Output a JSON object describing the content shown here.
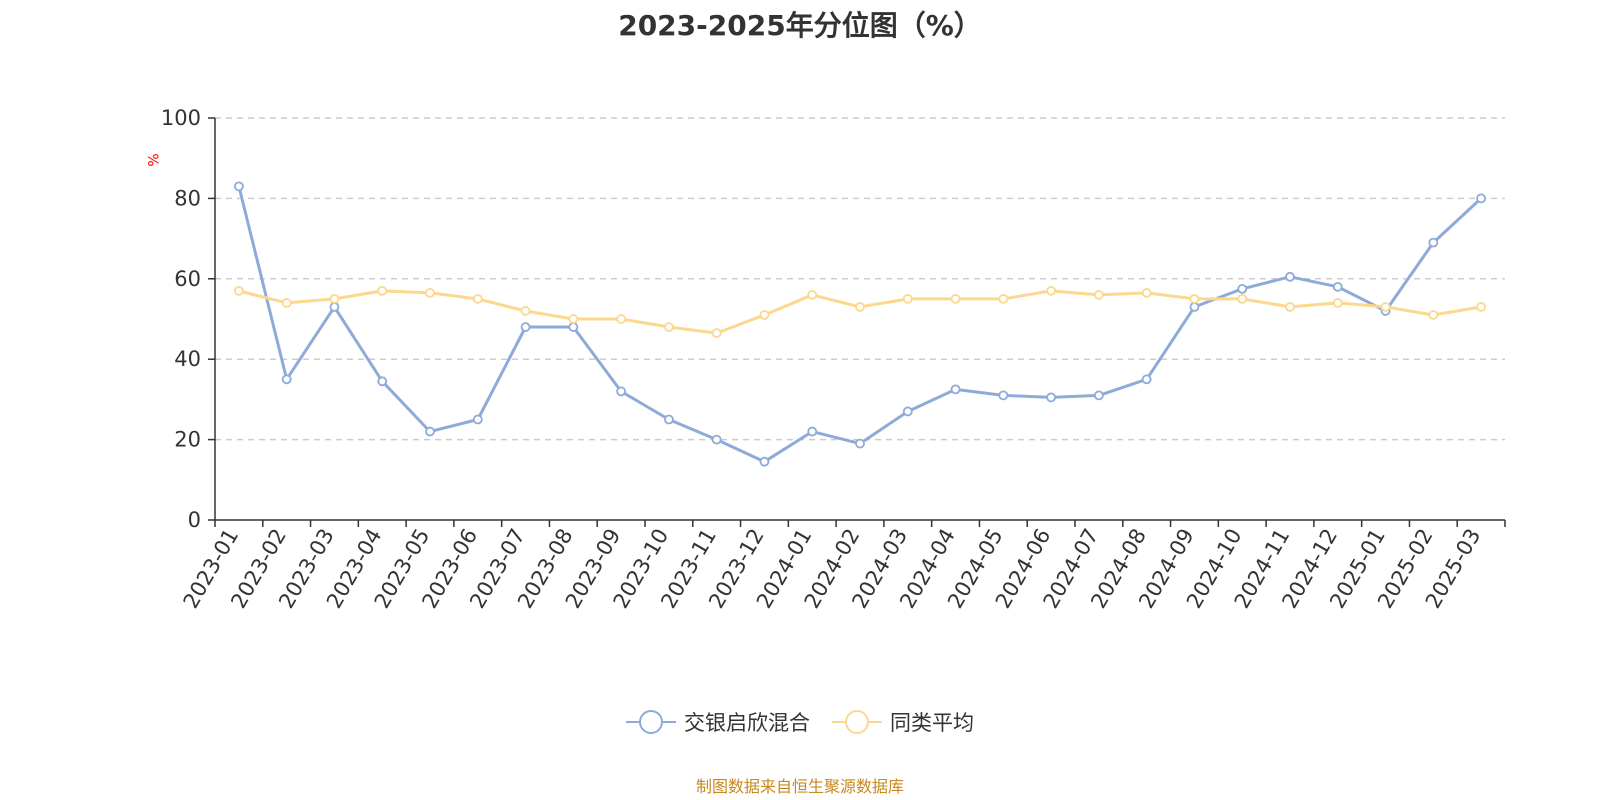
{
  "chart_data": {
    "type": "line",
    "title": "2023-2025年分位图（%）",
    "ylabel": "%",
    "xlabel": "",
    "ylim": [
      0,
      100
    ],
    "yticks": [
      0,
      20,
      40,
      60,
      80,
      100
    ],
    "grid": true,
    "legend_position": "bottom",
    "categories": [
      "2023-01",
      "2023-02",
      "2023-03",
      "2023-04",
      "2023-05",
      "2023-06",
      "2023-07",
      "2023-08",
      "2023-09",
      "2023-10",
      "2023-11",
      "2023-12",
      "2024-01",
      "2024-02",
      "2024-03",
      "2024-04",
      "2024-05",
      "2024-06",
      "2024-07",
      "2024-08",
      "2024-09",
      "2024-10",
      "2024-11",
      "2024-12",
      "2025-01",
      "2025-02",
      "2025-03"
    ],
    "series": [
      {
        "name": "交银启欣混合",
        "color": "#8eaad8",
        "values": [
          83,
          35,
          53,
          34.5,
          22,
          25,
          48,
          48,
          32,
          25,
          20,
          14.5,
          22,
          19,
          27,
          32.5,
          31,
          30.5,
          31,
          35,
          53,
          57.5,
          60.5,
          58,
          52,
          69,
          80
        ]
      },
      {
        "name": "同类平均",
        "color": "#fcd88e",
        "values": [
          57,
          54,
          55,
          57,
          56.5,
          55,
          52,
          50,
          50,
          48,
          46.5,
          51,
          56,
          53,
          55,
          55,
          55,
          57,
          56,
          56.5,
          55,
          55,
          53,
          54,
          53,
          51,
          53
        ]
      }
    ]
  },
  "source_note": "制图数据来自恒生聚源数据库"
}
